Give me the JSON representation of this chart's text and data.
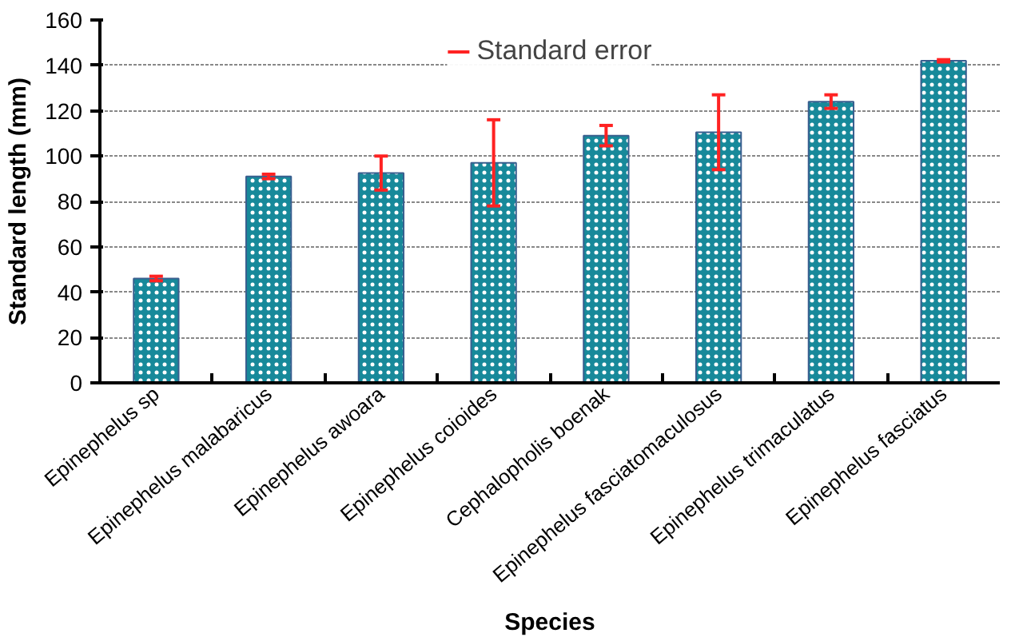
{
  "chart_data": {
    "type": "bar",
    "xlabel": "Species",
    "ylabel": "Standard length (mm)",
    "categories": [
      "Epinephelus sp",
      "Epinephelus malabaricus",
      "Epinephelus awoara",
      "Epinephelus coioides",
      "Cephalopholis boenak",
      "Epinephelus fasciatomaculosus",
      "Epinephelus trimaculatus",
      "Epinephelus fasciatus"
    ],
    "series": [
      {
        "name": "Standard error",
        "color": "#17899a",
        "values": [
          46,
          91,
          92.5,
          97,
          109,
          110.5,
          124,
          142
        ],
        "errors": [
          1,
          1,
          7.5,
          19,
          4.5,
          16.5,
          3,
          0.5
        ]
      }
    ],
    "ylim": [
      0,
      160
    ],
    "yticks": [
      0,
      20,
      40,
      60,
      80,
      100,
      120,
      140,
      160
    ],
    "grid": "y",
    "legend": "top"
  }
}
